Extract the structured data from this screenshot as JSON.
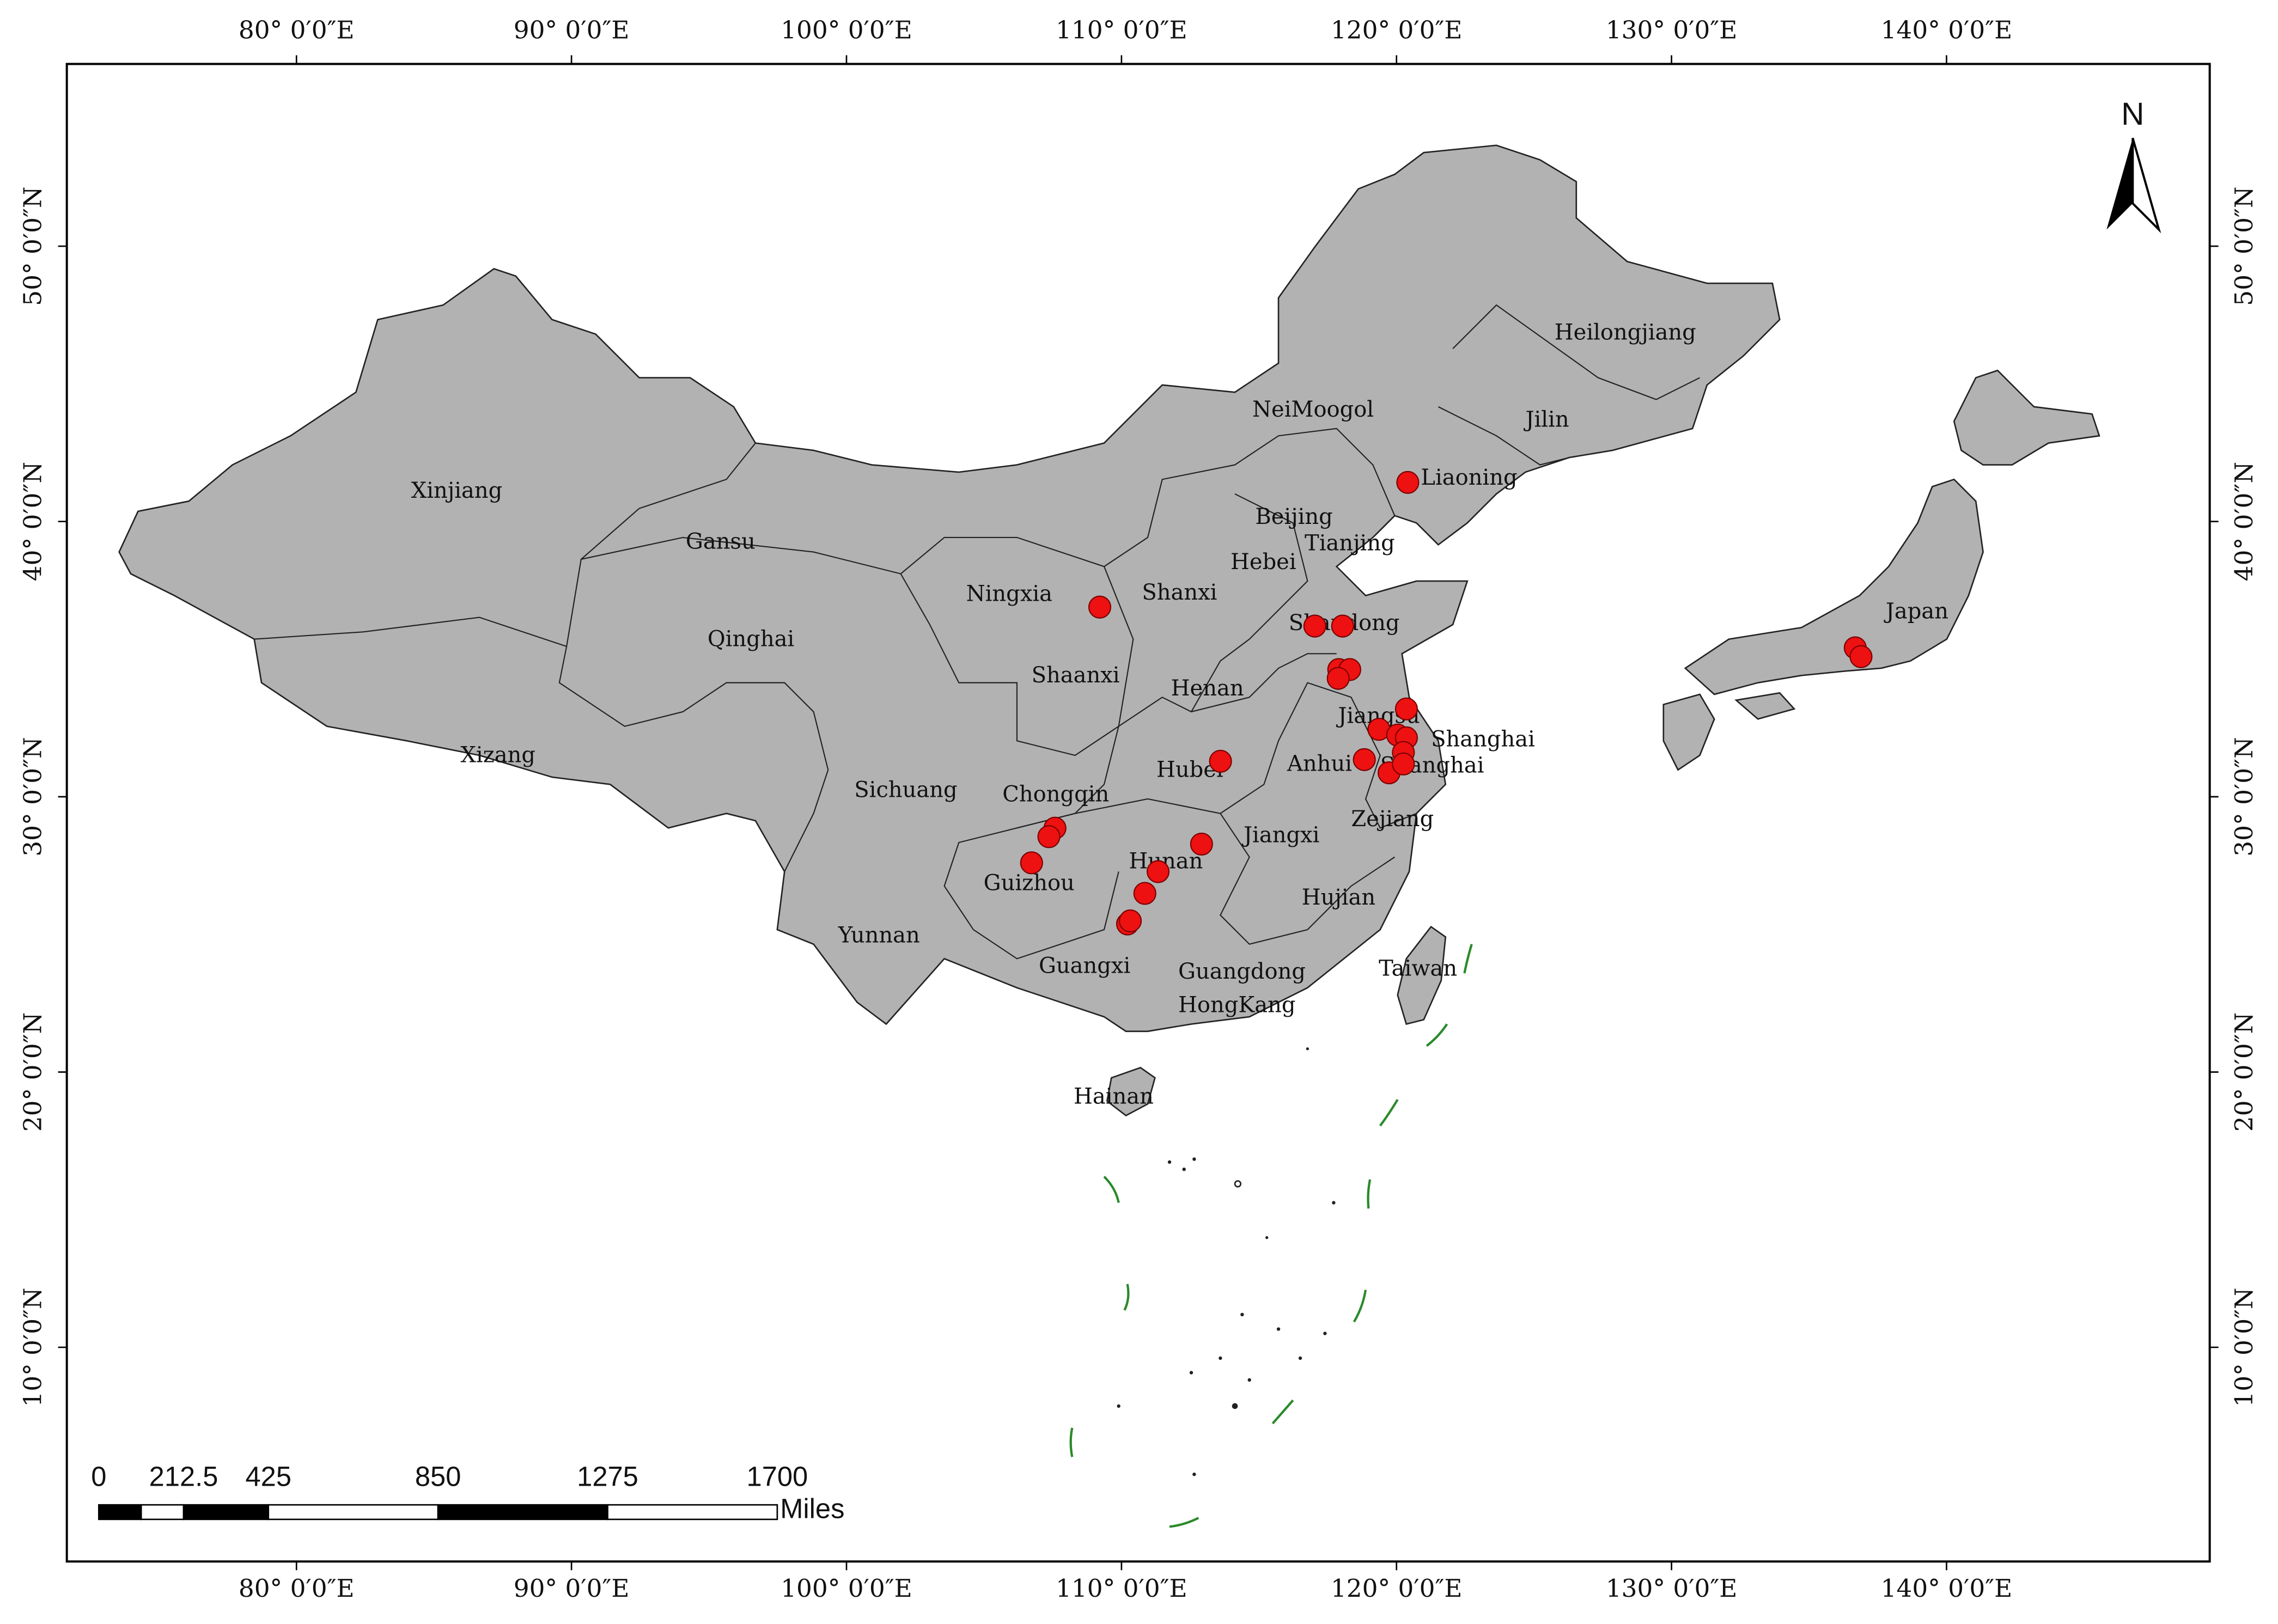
{
  "map": {
    "lon_range": [
      71.65,
      149.57
    ],
    "lat_range": [
      2.22,
      56.62
    ],
    "lon_ticks": [
      {
        "value": 80,
        "label": "80° 0′0″E"
      },
      {
        "value": 90,
        "label": "90° 0′0″E"
      },
      {
        "value": 100,
        "label": "100° 0′0″E"
      },
      {
        "value": 110,
        "label": "110° 0′0″E"
      },
      {
        "value": 120,
        "label": "120° 0′0″E"
      },
      {
        "value": 130,
        "label": "130° 0′0″E"
      },
      {
        "value": 140,
        "label": "140° 0′0″E"
      }
    ],
    "lat_ticks": [
      {
        "value": 10,
        "label": "10° 0′0″N"
      },
      {
        "value": 20,
        "label": "20° 0′0″N"
      },
      {
        "value": 30,
        "label": "30° 0′0″N"
      },
      {
        "value": 40,
        "label": "40° 0′0″N"
      },
      {
        "value": 50,
        "label": "50° 0′0″N"
      }
    ],
    "regions": [
      "Heilongjiang",
      "Jilin",
      "NeiMoogol",
      "Liaoning",
      "Xinjiang",
      "Gansu",
      "Beijing",
      "Tianjing",
      "Hebei",
      "Ningxia",
      "Shanxi",
      "Qinghai",
      "Shandong",
      "Shaanxi",
      "Henan",
      "Jiangsu",
      "Shanghai",
      "Xizang",
      "Anhui",
      "Hubei",
      "Shanghai",
      "Sichuang",
      "Chongqin",
      "Jiangxi",
      "Zejiang",
      "Hunan",
      "Guizhou",
      "Hujian",
      "Yunnan",
      "Guangxi",
      "Guangdong",
      "Taiwan",
      "HongKang",
      "Japan",
      "Hainan"
    ],
    "points": [
      {
        "lon": 120.41,
        "lat": 41.42
      },
      {
        "lon": 109.21,
        "lat": 36.89
      },
      {
        "lon": 117.03,
        "lat": 36.2
      },
      {
        "lon": 118.04,
        "lat": 36.2
      },
      {
        "lon": 117.9,
        "lat": 34.62
      },
      {
        "lon": 118.3,
        "lat": 34.62
      },
      {
        "lon": 117.88,
        "lat": 34.3
      },
      {
        "lon": 120.36,
        "lat": 33.19
      },
      {
        "lon": 119.36,
        "lat": 32.45
      },
      {
        "lon": 120.04,
        "lat": 32.24
      },
      {
        "lon": 120.36,
        "lat": 32.14
      },
      {
        "lon": 120.25,
        "lat": 31.61
      },
      {
        "lon": 118.83,
        "lat": 31.35
      },
      {
        "lon": 119.73,
        "lat": 30.87
      },
      {
        "lon": 120.25,
        "lat": 31.19
      },
      {
        "lon": 113.6,
        "lat": 31.29
      },
      {
        "lon": 107.58,
        "lat": 28.86
      },
      {
        "lon": 107.36,
        "lat": 28.55
      },
      {
        "lon": 106.73,
        "lat": 27.6
      },
      {
        "lon": 112.91,
        "lat": 28.28
      },
      {
        "lon": 111.33,
        "lat": 27.28
      },
      {
        "lon": 110.85,
        "lat": 26.49
      },
      {
        "lon": 110.22,
        "lat": 25.38
      },
      {
        "lon": 110.32,
        "lat": 25.49
      },
      {
        "lon": 136.68,
        "lat": 35.41
      },
      {
        "lon": 136.89,
        "lat": 35.09
      }
    ],
    "point_color": "#ee1111",
    "scale_bar": {
      "ticks": [
        0,
        212.5,
        425,
        850,
        1275,
        1700
      ],
      "unit": "Miles"
    },
    "north": "N"
  }
}
